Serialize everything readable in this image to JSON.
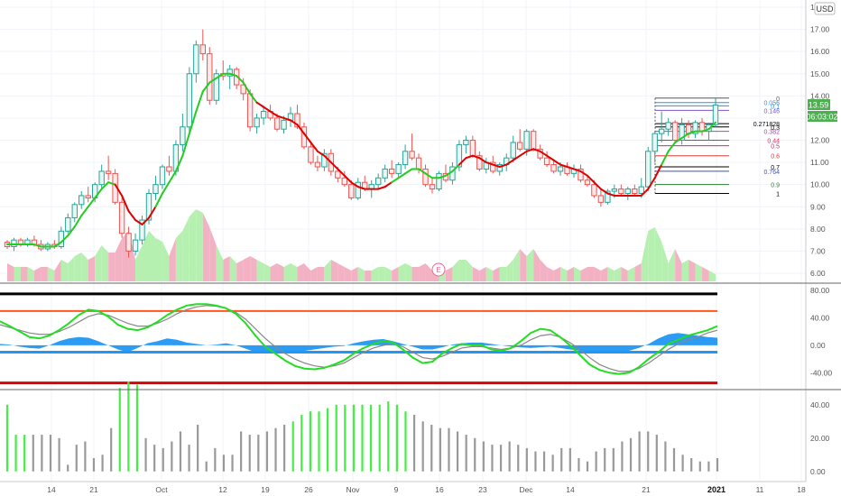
{
  "app": {
    "currency_label": "USD"
  },
  "price_badges": {
    "last_price": "13.59",
    "countdown": "06:03:02"
  },
  "colors": {
    "up": "#26a69a",
    "down": "#ef5350",
    "ma_up": "#22cc22",
    "ma_down": "#e00000",
    "vol_up": "#b6f0b0",
    "vol_down": "#f3b2c4",
    "macd_hist": "#2196f3",
    "bar_green": "#44ee44",
    "bar_gray": "#999999"
  },
  "x_axis": {
    "labels": [
      "14",
      "21",
      "Oct",
      "12",
      "19",
      "26",
      "Nov",
      "9",
      "16",
      "23",
      "Dec",
      "14",
      "21",
      "2021",
      "11",
      "18"
    ]
  },
  "event_marker": "E",
  "chart_data": [
    {
      "type": "candlestick",
      "title": "",
      "ylim": [
        5.6,
        18.1
      ],
      "y_ticks": [
        "18.00",
        "17.00",
        "16.00",
        "15.00",
        "14.00",
        "13.00",
        "12.00",
        "11.00",
        "10.00",
        "9.00",
        "8.00",
        "7.00",
        "6.00"
      ],
      "candles": [
        [
          7.4,
          7.5,
          7.1,
          7.2
        ],
        [
          7.2,
          7.6,
          7.0,
          7.5
        ],
        [
          7.5,
          7.6,
          7.2,
          7.3
        ],
        [
          7.3,
          7.6,
          7.2,
          7.5
        ],
        [
          7.5,
          7.7,
          7.2,
          7.3
        ],
        [
          7.3,
          7.5,
          7.0,
          7.1
        ],
        [
          7.1,
          7.4,
          7.0,
          7.3
        ],
        [
          7.3,
          7.5,
          7.1,
          7.2
        ],
        [
          7.2,
          8.1,
          7.1,
          7.9
        ],
        [
          7.9,
          8.7,
          7.8,
          8.5
        ],
        [
          8.5,
          9.2,
          8.3,
          9.1
        ],
        [
          9.1,
          9.7,
          8.9,
          9.5
        ],
        [
          9.5,
          9.9,
          9.2,
          9.4
        ],
        [
          9.4,
          10.1,
          9.2,
          10.0
        ],
        [
          10.0,
          10.9,
          9.8,
          10.6
        ],
        [
          10.6,
          11.3,
          10.2,
          10.5
        ],
        [
          10.5,
          10.7,
          9.1,
          9.2
        ],
        [
          9.2,
          9.4,
          7.6,
          7.8
        ],
        [
          7.8,
          8.1,
          6.7,
          7.0
        ],
        [
          7.0,
          7.8,
          6.8,
          7.5
        ],
        [
          7.5,
          8.6,
          7.3,
          8.4
        ],
        [
          8.4,
          9.8,
          8.2,
          9.6
        ],
        [
          9.6,
          10.4,
          9.3,
          10.0
        ],
        [
          10.0,
          10.9,
          9.8,
          10.8
        ],
        [
          10.8,
          11.3,
          10.4,
          10.6
        ],
        [
          10.6,
          12.0,
          10.4,
          11.8
        ],
        [
          11.8,
          13.2,
          11.5,
          12.6
        ],
        [
          12.6,
          15.3,
          12.3,
          15.0
        ],
        [
          15.0,
          16.5,
          14.6,
          16.3
        ],
        [
          16.3,
          17.0,
          15.6,
          15.9
        ],
        [
          15.9,
          16.2,
          13.6,
          13.8
        ],
        [
          13.8,
          15.2,
          13.6,
          15.0
        ],
        [
          15.0,
          15.6,
          14.7,
          14.9
        ],
        [
          14.9,
          15.4,
          14.3,
          15.2
        ],
        [
          15.2,
          15.3,
          14.3,
          14.5
        ],
        [
          14.5,
          14.8,
          13.8,
          14.1
        ],
        [
          14.1,
          14.3,
          12.4,
          12.6
        ],
        [
          12.6,
          13.2,
          12.3,
          13.0
        ],
        [
          13.0,
          13.5,
          12.7,
          13.3
        ],
        [
          13.3,
          13.6,
          12.9,
          13.0
        ],
        [
          13.0,
          13.2,
          12.4,
          12.5
        ],
        [
          12.5,
          13.1,
          12.3,
          12.9
        ],
        [
          12.9,
          13.5,
          12.6,
          13.2
        ],
        [
          13.2,
          13.6,
          12.5,
          12.6
        ],
        [
          12.6,
          12.8,
          11.6,
          11.7
        ],
        [
          11.7,
          11.9,
          10.9,
          11.0
        ],
        [
          11.0,
          11.3,
          10.6,
          10.8
        ],
        [
          10.8,
          11.6,
          10.6,
          11.4
        ],
        [
          11.4,
          11.6,
          10.4,
          10.6
        ],
        [
          10.6,
          10.8,
          10.1,
          10.3
        ],
        [
          10.3,
          10.6,
          9.9,
          10.0
        ],
        [
          10.0,
          10.2,
          9.3,
          9.4
        ],
        [
          9.4,
          10.3,
          9.3,
          10.1
        ],
        [
          10.1,
          10.4,
          9.7,
          9.8
        ],
        [
          9.8,
          10.2,
          9.4,
          10.0
        ],
        [
          10.0,
          10.5,
          9.8,
          10.3
        ],
        [
          10.3,
          10.9,
          10.1,
          10.7
        ],
        [
          10.7,
          11.1,
          10.3,
          10.5
        ],
        [
          10.5,
          11.0,
          10.3,
          10.9
        ],
        [
          10.9,
          11.8,
          10.7,
          11.5
        ],
        [
          11.5,
          12.3,
          11.1,
          11.2
        ],
        [
          11.2,
          11.4,
          10.5,
          10.7
        ],
        [
          10.7,
          10.9,
          9.9,
          10.0
        ],
        [
          10.0,
          10.3,
          9.6,
          9.8
        ],
        [
          9.8,
          10.6,
          9.7,
          10.5
        ],
        [
          10.5,
          10.9,
          10.1,
          10.2
        ],
        [
          10.2,
          11.0,
          10.0,
          10.8
        ],
        [
          10.8,
          12.0,
          10.6,
          11.8
        ],
        [
          11.8,
          12.2,
          11.4,
          12.0
        ],
        [
          12.0,
          12.2,
          11.2,
          11.3
        ],
        [
          11.3,
          11.5,
          10.6,
          10.7
        ],
        [
          10.7,
          11.2,
          10.5,
          11.0
        ],
        [
          11.0,
          11.3,
          10.5,
          10.6
        ],
        [
          10.6,
          11.0,
          10.4,
          10.9
        ],
        [
          10.9,
          11.4,
          10.6,
          11.2
        ],
        [
          11.2,
          12.2,
          11.0,
          11.9
        ],
        [
          11.9,
          12.5,
          11.5,
          11.6
        ],
        [
          11.6,
          12.5,
          11.3,
          12.4
        ],
        [
          12.4,
          12.5,
          11.5,
          11.6
        ],
        [
          11.6,
          11.8,
          11.1,
          11.2
        ],
        [
          11.2,
          11.5,
          10.8,
          10.9
        ],
        [
          10.9,
          11.1,
          10.5,
          10.6
        ],
        [
          10.6,
          11.0,
          10.4,
          10.8
        ],
        [
          10.8,
          11.0,
          10.4,
          10.5
        ],
        [
          10.5,
          10.9,
          10.3,
          10.7
        ],
        [
          10.7,
          10.9,
          10.1,
          10.2
        ],
        [
          10.2,
          10.4,
          9.9,
          10.0
        ],
        [
          10.0,
          10.2,
          9.4,
          9.5
        ],
        [
          9.5,
          9.8,
          9.0,
          9.2
        ],
        [
          9.2,
          9.8,
          9.1,
          9.7
        ],
        [
          9.7,
          10.0,
          9.4,
          9.8
        ],
        [
          9.8,
          10.0,
          9.5,
          9.6
        ],
        [
          9.6,
          9.9,
          9.3,
          9.8
        ],
        [
          9.8,
          10.0,
          9.5,
          9.6
        ],
        [
          9.6,
          10.3,
          9.4,
          9.9
        ],
        [
          9.9,
          11.7,
          9.7,
          11.5
        ],
        [
          11.5,
          12.4,
          11.0,
          12.3
        ],
        [
          12.3,
          13.3,
          11.9,
          12.5
        ],
        [
          12.5,
          13.0,
          12.2,
          12.8
        ],
        [
          12.8,
          12.9,
          11.9,
          12.0
        ],
        [
          12.0,
          13.0,
          11.8,
          12.7
        ],
        [
          12.7,
          12.9,
          12.1,
          12.3
        ],
        [
          12.3,
          12.9,
          12.1,
          12.8
        ],
        [
          12.8,
          13.0,
          12.2,
          12.4
        ],
        [
          12.4,
          12.8,
          12.0,
          12.7
        ],
        [
          12.7,
          13.9,
          12.6,
          13.59
        ]
      ],
      "ma": [
        7.3,
        7.3,
        7.3,
        7.3,
        7.3,
        7.2,
        7.2,
        7.2,
        7.4,
        7.7,
        8.1,
        8.6,
        9.0,
        9.4,
        9.8,
        10.1,
        10.0,
        9.5,
        8.8,
        8.4,
        8.2,
        8.5,
        9.0,
        9.6,
        10.1,
        10.6,
        11.3,
        12.3,
        13.3,
        14.2,
        14.6,
        14.8,
        15.0,
        15.0,
        14.9,
        14.6,
        14.1,
        13.7,
        13.5,
        13.3,
        13.1,
        13.0,
        12.9,
        12.7,
        12.3,
        11.9,
        11.5,
        11.3,
        11.0,
        10.7,
        10.4,
        10.1,
        9.9,
        9.8,
        9.8,
        9.8,
        9.9,
        10.1,
        10.3,
        10.5,
        10.7,
        10.7,
        10.5,
        10.3,
        10.3,
        10.4,
        10.6,
        10.9,
        11.2,
        11.3,
        11.2,
        11.0,
        10.9,
        10.8,
        10.9,
        11.1,
        11.3,
        11.5,
        11.6,
        11.5,
        11.3,
        11.1,
        10.9,
        10.8,
        10.7,
        10.6,
        10.4,
        10.1,
        9.8,
        9.6,
        9.5,
        9.5,
        9.5,
        9.5,
        9.5,
        9.8,
        10.3,
        10.9,
        11.5,
        11.9,
        12.1,
        12.3,
        12.4,
        12.4,
        12.5,
        12.8
      ],
      "ma_trend": "uuuuuuuuuuuuuuuudddddduuuuuuuuuuuuuuudddddddddddddddddddduuuuuuuuuudddddddddddddddddddddddddddddduuuuuuuuuuu",
      "volume": [
        0.25,
        0.2,
        0.2,
        0.2,
        0.15,
        0.2,
        0.2,
        0.15,
        0.3,
        0.25,
        0.35,
        0.4,
        0.3,
        0.35,
        0.5,
        0.4,
        0.4,
        0.6,
        0.7,
        0.3,
        0.5,
        0.7,
        0.6,
        0.55,
        0.35,
        0.6,
        0.7,
        0.9,
        1.0,
        0.95,
        0.75,
        0.5,
        0.3,
        0.35,
        0.25,
        0.3,
        0.35,
        0.3,
        0.25,
        0.2,
        0.25,
        0.2,
        0.25,
        0.2,
        0.25,
        0.15,
        0.2,
        0.2,
        0.3,
        0.25,
        0.2,
        0.15,
        0.2,
        0.15,
        0.15,
        0.2,
        0.2,
        0.15,
        0.2,
        0.25,
        0.2,
        0.2,
        0.25,
        0.15,
        0.2,
        0.15,
        0.2,
        0.3,
        0.3,
        0.2,
        0.15,
        0.2,
        0.15,
        0.2,
        0.2,
        0.3,
        0.45,
        0.35,
        0.45,
        0.3,
        0.2,
        0.15,
        0.2,
        0.15,
        0.2,
        0.15,
        0.2,
        0.2,
        0.15,
        0.2,
        0.15,
        0.2,
        0.15,
        0.2,
        0.25,
        0.7,
        0.75,
        0.55,
        0.25,
        0.45,
        0.25,
        0.3,
        0.25,
        0.2,
        0.15,
        0.1
      ],
      "fib_levels": [
        {
          "label": "0",
          "value": 13.9,
          "color": "#555555"
        },
        {
          "label": "0.056",
          "value": 13.7,
          "color": "#2196f3"
        },
        {
          "label": "0.1",
          "value": 13.55,
          "color": "#2196f3"
        },
        {
          "label": "0.146",
          "value": 13.35,
          "color": "#7e57c2"
        },
        {
          "label": "0.271828",
          "value": 12.75,
          "color": "#000000"
        },
        {
          "label": "0.3",
          "value": 12.6,
          "color": "#000000"
        },
        {
          "label": "0.382",
          "value": 12.4,
          "color": "#ab47bc"
        },
        {
          "label": "0.44",
          "value": 12.0,
          "color": "#e91e63"
        },
        {
          "label": "0.5",
          "value": 11.75,
          "color": "#e91e63"
        },
        {
          "label": "0.6",
          "value": 11.3,
          "color": "#e53935"
        },
        {
          "label": "0.7",
          "value": 10.8,
          "color": "#000000"
        },
        {
          "label": "0.764",
          "value": 10.6,
          "color": "#3f51b5"
        },
        {
          "label": "0.9",
          "value": 10.0,
          "color": "#2e7d32"
        },
        {
          "label": "1",
          "value": 9.6,
          "color": "#000000"
        }
      ]
    },
    {
      "type": "line",
      "ylim": [
        -62,
        88
      ],
      "y_ticks": [
        "80.00",
        "40.00",
        "0.00",
        "-40.00"
      ],
      "upper_line": 75,
      "orange_line": 50,
      "blue_line": -10,
      "red_line": -55,
      "green_line": [
        35,
        28,
        20,
        12,
        10,
        14,
        22,
        32,
        44,
        52,
        50,
        42,
        30,
        24,
        22,
        26,
        34,
        44,
        52,
        58,
        60,
        60,
        58,
        54,
        46,
        32,
        14,
        -2,
        -12,
        -22,
        -30,
        -34,
        -35,
        -33,
        -28,
        -22,
        -12,
        -4,
        2,
        6,
        4,
        -6,
        -18,
        -26,
        -24,
        -12,
        -4,
        2,
        0,
        0,
        -6,
        -8,
        -4,
        6,
        18,
        24,
        22,
        12,
        0,
        -14,
        -28,
        -36,
        -40,
        -42,
        -40,
        -32,
        -20,
        -10,
        2,
        8,
        14,
        18,
        22,
        28
      ],
      "gray_line": [
        30,
        26,
        22,
        18,
        16,
        16,
        20,
        26,
        34,
        42,
        46,
        44,
        38,
        32,
        28,
        28,
        32,
        38,
        46,
        52,
        56,
        58,
        57,
        54,
        48,
        38,
        24,
        10,
        -2,
        -12,
        -20,
        -26,
        -30,
        -32,
        -30,
        -26,
        -18,
        -10,
        -4,
        0,
        2,
        -2,
        -10,
        -18,
        -20,
        -16,
        -10,
        -4,
        -2,
        -2,
        -4,
        -6,
        -4,
        0,
        8,
        14,
        16,
        12,
        4,
        -6,
        -18,
        -28,
        -34,
        -38,
        -38,
        -34,
        -26,
        -16,
        -6,
        2,
        8,
        12,
        18,
        22
      ],
      "histogram": [
        2,
        1,
        -2,
        -4,
        -5,
        0,
        6,
        10,
        12,
        11,
        6,
        0,
        -6,
        -10,
        -4,
        3,
        6,
        10,
        8,
        4,
        2,
        0,
        1,
        3,
        0,
        -5,
        -10,
        -12,
        -11,
        -10,
        -9,
        -8,
        -6,
        -4,
        -2,
        -1,
        3,
        6,
        8,
        9,
        6,
        2,
        -2,
        -6,
        -6,
        -3,
        1,
        3,
        4,
        4,
        2,
        0,
        -2,
        -3,
        -4,
        -3,
        -2,
        -4,
        -6,
        -8,
        -10,
        -11,
        -11,
        -10,
        -8,
        -4,
        2,
        10,
        16,
        18,
        16,
        14,
        12,
        11
      ]
    },
    {
      "type": "bar",
      "ylim": [
        -5,
        48
      ],
      "y_ticks": [
        "40.00",
        "20.00",
        "0.00"
      ],
      "values": [
        40,
        22,
        22,
        22,
        22,
        22,
        20,
        4,
        16,
        18,
        8,
        10,
        26,
        50,
        54,
        52,
        20,
        16,
        14,
        18,
        24,
        16,
        28,
        6,
        14,
        10,
        10,
        24,
        22,
        22,
        24,
        26,
        28,
        30,
        34,
        36,
        36,
        38,
        40,
        40,
        40,
        40,
        40,
        40,
        42,
        40,
        36,
        34,
        30,
        28,
        26,
        26,
        24,
        22,
        20,
        18,
        16,
        16,
        18,
        16,
        14,
        12,
        12,
        10,
        14,
        14,
        8,
        6,
        12,
        14,
        14,
        18,
        20,
        24,
        24,
        22,
        18,
        14,
        10,
        8,
        6,
        6,
        8
      ],
      "highlight": "GGGnnnnnnnnnnGGGnnnnnnnnnnnnnnnnnGGGGGGGGGGGGGGnnnnnnnnnnnnnnnnnnnnnnnnnnnnnnnnnnnnnGGGnnnnnnnnnnnnnnnnnnnnn"
    }
  ]
}
